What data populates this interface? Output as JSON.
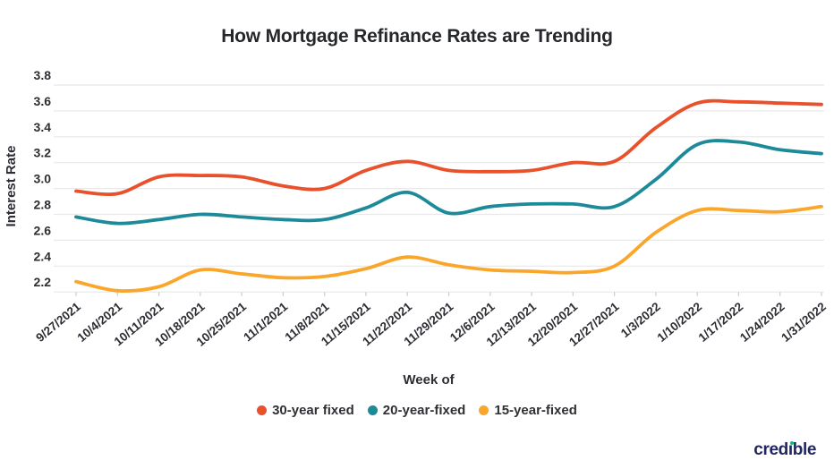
{
  "chart_data": {
    "type": "line",
    "title": "How Mortgage Refinance Rates are Trending",
    "xlabel": "Week of",
    "ylabel": "Interest Rate",
    "ylim": [
      2.2,
      3.8
    ],
    "grid": true,
    "legend_position": "bottom",
    "y_ticks": [
      "3.8",
      "3.6",
      "3.4",
      "3.2",
      "3.0",
      "2.8",
      "2.6",
      "2.4",
      "2.2"
    ],
    "categories": [
      "9/27/2021",
      "10/4/2021",
      "10/11/2021",
      "10/18/2021",
      "10/25/2021",
      "11/1/2021",
      "11/8/2021",
      "11/15/2021",
      "11/22/2021",
      "11/29/2021",
      "12/6/2021",
      "12/13/2021",
      "12/20/2021",
      "12/27/2021",
      "1/3/2022",
      "1/10/2022",
      "1/17/2022",
      "1/24/2022",
      "1/31/2022"
    ],
    "series": [
      {
        "name": "30-year fixed",
        "color": "#e8512b",
        "values": [
          2.98,
          2.96,
          3.09,
          3.1,
          3.09,
          3.02,
          3.0,
          3.14,
          3.21,
          3.14,
          3.13,
          3.14,
          3.2,
          3.21,
          3.47,
          3.66,
          3.67,
          3.66,
          3.65
        ]
      },
      {
        "name": "20-year-fixed",
        "color": "#1d8a99",
        "values": [
          2.78,
          2.73,
          2.76,
          2.8,
          2.78,
          2.76,
          2.76,
          2.85,
          2.97,
          2.81,
          2.86,
          2.88,
          2.88,
          2.86,
          3.07,
          3.34,
          3.36,
          3.3,
          3.27
        ]
      },
      {
        "name": "15-year-fixed",
        "color": "#faa62b",
        "values": [
          2.28,
          2.21,
          2.24,
          2.37,
          2.34,
          2.31,
          2.32,
          2.38,
          2.47,
          2.41,
          2.37,
          2.36,
          2.35,
          2.4,
          2.66,
          2.83,
          2.83,
          2.82,
          2.86
        ]
      }
    ],
    "gridline_color": "#e8e8e8",
    "text_color": "#2c2e33"
  },
  "branding": {
    "logo": {
      "pre": "cred",
      "i_glyph": "ı",
      "post": "ble",
      "text_color": "#232561",
      "dot_color": "#02c385"
    }
  }
}
